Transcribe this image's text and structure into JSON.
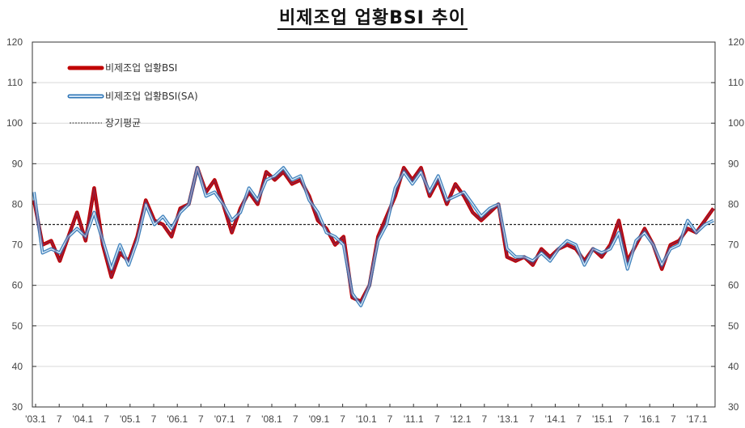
{
  "title": "비제조업 업황BSI 추이",
  "legend": [
    {
      "label": "비제조업 업황BSI",
      "color": "#c00000",
      "style": "thick-solid"
    },
    {
      "label": "비제조업 업황BSI(SA)",
      "color": "#2e75b6",
      "style": "double-outline"
    },
    {
      "label": "장기평균",
      "color": "#333333",
      "style": "dotted"
    }
  ],
  "chart_data": {
    "type": "line",
    "title": "비제조업 업황BSI 추이",
    "xlabel": "",
    "ylabel": "",
    "ylim": [
      30,
      120
    ],
    "yticks": [
      30,
      40,
      50,
      60,
      70,
      80,
      90,
      100,
      110,
      120
    ],
    "xtick_labels": [
      "'03.1",
      "7",
      "'04.1",
      "7",
      "'05.1",
      "7",
      "'06.1",
      "7",
      "'07.1",
      "7",
      "'08.1",
      "7",
      "'09.1",
      "7",
      "'10.1",
      "7",
      "'11.1",
      "7",
      "'12.1",
      "7",
      "'13.1",
      "7",
      "'14.1",
      "7",
      "'15.1",
      "7",
      "'16.1",
      "7",
      "'17.1"
    ],
    "grid": true,
    "legend_position": "upper-left",
    "long_term_average": 75,
    "x_start": "2003.01",
    "x_step": "quarter",
    "series": [
      {
        "name": "비제조업 업황BSI",
        "color": "#c00000",
        "values": [
          81,
          70,
          71,
          66,
          72,
          78,
          71,
          84,
          70,
          62,
          68,
          66,
          72,
          81,
          76,
          75,
          72,
          79,
          80,
          89,
          83,
          86,
          80,
          73,
          79,
          83,
          80,
          88,
          86,
          88,
          85,
          86,
          82,
          76,
          74,
          70,
          72,
          57,
          56,
          60,
          72,
          77,
          82,
          89,
          86,
          89,
          82,
          86,
          80,
          85,
          82,
          78,
          76,
          78,
          80,
          67,
          66,
          67,
          65,
          69,
          67,
          69,
          70,
          69,
          66,
          69,
          67,
          70,
          76,
          66,
          70,
          74,
          70,
          64,
          70,
          71,
          74,
          73,
          76,
          79
        ]
      },
      {
        "name": "비제조업 업황BSI(SA)",
        "color": "#2e75b6",
        "values": [
          83,
          68,
          69,
          68,
          72,
          74,
          72,
          78,
          71,
          64,
          70,
          65,
          71,
          80,
          75,
          77,
          74,
          78,
          80,
          89,
          82,
          83,
          80,
          76,
          78,
          84,
          81,
          86,
          87,
          89,
          86,
          87,
          81,
          78,
          73,
          72,
          70,
          58,
          55,
          60,
          71,
          75,
          84,
          88,
          85,
          88,
          83,
          87,
          81,
          82,
          83,
          80,
          77,
          79,
          80,
          69,
          67,
          67,
          66,
          68,
          66,
          69,
          71,
          70,
          65,
          69,
          68,
          69,
          73,
          64,
          71,
          73,
          70,
          65,
          69,
          70,
          76,
          73,
          75,
          76
        ]
      }
    ]
  }
}
